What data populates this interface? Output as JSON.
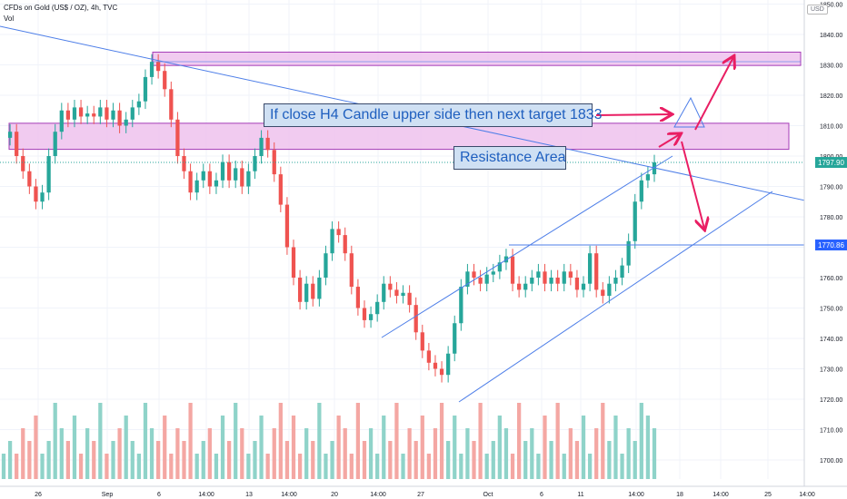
{
  "header": {
    "title": "CFDs on Gold (US$ / OZ), 4h, TVC",
    "volume_label": "Vol",
    "currency": "USD"
  },
  "annotations": {
    "target_note": "If close H4 Candle upper side then next target 1833",
    "resistance_note": "Resistance Area"
  },
  "colors": {
    "bull": "#26a69a",
    "bear": "#ef5350",
    "vol_bull": "#8fd3c9",
    "vol_bear": "#f4a7a3",
    "zone_fill": "#f0c6ef",
    "zone_border": "#9c27b0",
    "trendline": "#4d7ee8",
    "arrow": "#e91e63",
    "last_price_bg": "#26a69a",
    "level_bg": "#2962ff"
  },
  "chart_data": {
    "type": "candlestick",
    "title": "CFDs on Gold (US$ / OZ), 4h, TVC",
    "xlabel": "",
    "ylabel": "",
    "y_ticks": [
      1700,
      1710,
      1720,
      1730,
      1740,
      1750,
      1760,
      1770,
      1780,
      1790,
      1800,
      1810,
      1820,
      1830,
      1840,
      1850
    ],
    "y_tick_labels": [
      "1700.00",
      "1710.00",
      "1720.00",
      "1730.00",
      "1740.00",
      "1750.00",
      "1760.00",
      "1770.00",
      "1780.00",
      "1790.00",
      "1800.00",
      "1810.00",
      "1820.00",
      "1830.00",
      "1840.00",
      "1850.00"
    ],
    "x_tick_labels": [
      "26",
      "Sep",
      "6",
      "14:00",
      "13",
      "14:00",
      "20",
      "14:00",
      "27",
      "Oct",
      "6",
      "11",
      "14:00",
      "18",
      "14:00",
      "25",
      "14:00"
    ],
    "ylim": [
      1693,
      1851
    ],
    "grid": true,
    "price_path": [
      1806,
      1808,
      1800,
      1795,
      1790,
      1785,
      1788,
      1800,
      1808,
      1815,
      1812,
      1816,
      1813,
      1814,
      1813,
      1816,
      1812,
      1815,
      1810,
      1812,
      1816,
      1818,
      1826,
      1831,
      1828,
      1822,
      1812,
      1800,
      1795,
      1788,
      1792,
      1795,
      1790,
      1792,
      1798,
      1792,
      1796,
      1790,
      1795,
      1800,
      1806,
      1802,
      1794,
      1784,
      1770,
      1760,
      1752,
      1758,
      1753,
      1760,
      1768,
      1776,
      1774,
      1768,
      1757,
      1750,
      1746,
      1748,
      1752,
      1758,
      1756,
      1754,
      1755,
      1751,
      1742,
      1736,
      1732,
      1730,
      1728,
      1735,
      1745,
      1757,
      1762,
      1760,
      1758,
      1761,
      1762,
      1765,
      1767,
      1758,
      1756,
      1758,
      1760,
      1762,
      1758,
      1760,
      1758,
      1762,
      1760,
      1756,
      1758,
      1768,
      1756,
      1754,
      1758,
      1760,
      1764,
      1772,
      1785,
      1792,
      1794,
      1797.9
    ],
    "volume": [
      2,
      3,
      2,
      4,
      3,
      5,
      2,
      3,
      6,
      4,
      3,
      5,
      2,
      4,
      3,
      6,
      2,
      3,
      4,
      5,
      3,
      2,
      6,
      4,
      3,
      5,
      2,
      4,
      3,
      6,
      2,
      3,
      4,
      2,
      5,
      3,
      6,
      4,
      2,
      3,
      5,
      2,
      4,
      6,
      3,
      5,
      2,
      4,
      3,
      6,
      2,
      3,
      5,
      4,
      2,
      6,
      3,
      4,
      2,
      5,
      3,
      6,
      2,
      4,
      3,
      5,
      2,
      4,
      6,
      3,
      5,
      2,
      4,
      3,
      6,
      2,
      3,
      5,
      4,
      2,
      6,
      3,
      4,
      2,
      5,
      3,
      6,
      2,
      4,
      3,
      5,
      2,
      4,
      6,
      3,
      5,
      2,
      4,
      3,
      6,
      5,
      4
    ],
    "last_price": {
      "value": 1797.9,
      "label": "1797.90"
    },
    "horizontal_level": {
      "value": 1770.86,
      "label": "1770.86"
    },
    "zones": [
      {
        "name": "target-zone",
        "top": 1833,
        "bottom": 1831
      },
      {
        "name": "resistance-zone",
        "top": 1809,
        "bottom": 1804
      }
    ]
  }
}
